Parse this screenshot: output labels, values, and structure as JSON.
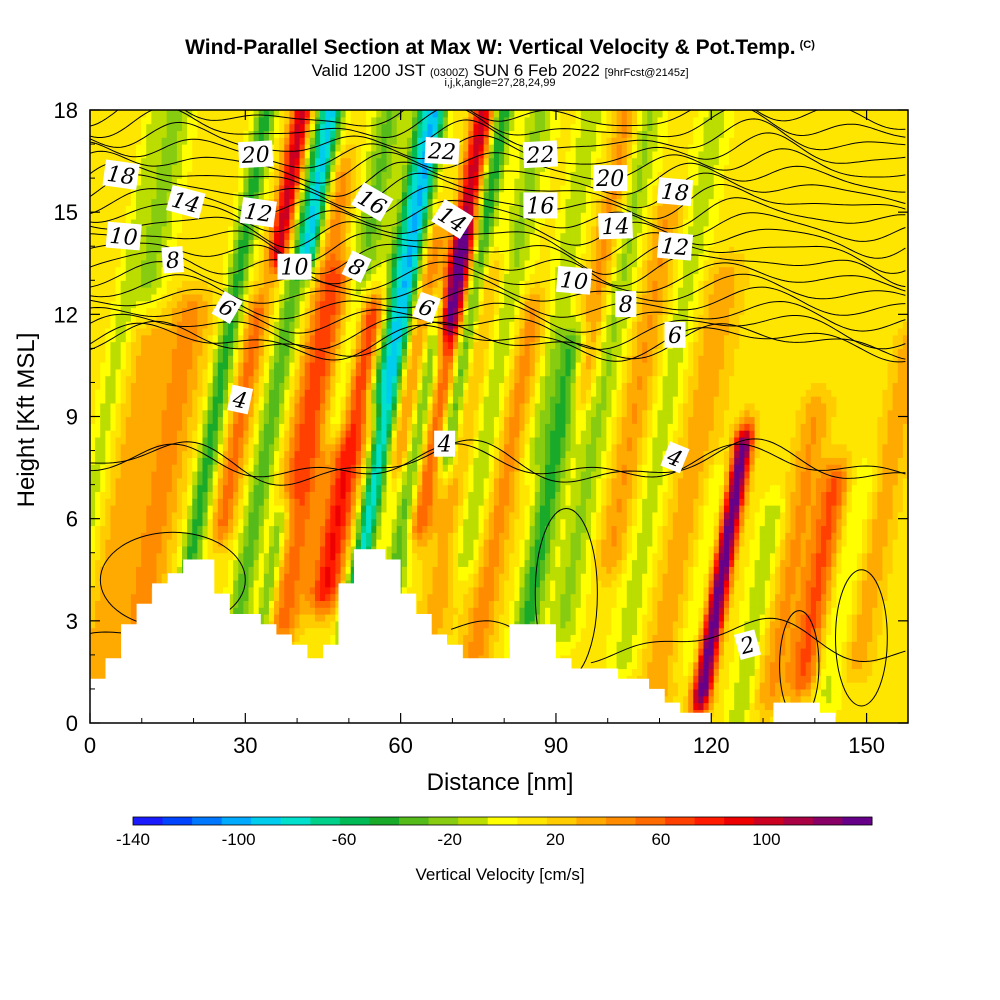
{
  "header": {
    "title": "Wind-Parallel Section at Max W: Vertical Velocity & Pot.Temp.",
    "title_tag": "(C)",
    "subtitle_a": "Valid 1200 JST",
    "subtitle_b": "(0300Z)",
    "subtitle_c": "SUN 6 Feb 2022",
    "subtitle_d": "[9hrFcst@2145z]",
    "info": "i,j,k,angle=27,28,24,99"
  },
  "chart_data": {
    "type": "heatmap",
    "xlabel": "Distance [nm]",
    "ylabel": "Height [Kft MSL]",
    "xlim": [
      0,
      158
    ],
    "ylim": [
      0,
      18
    ],
    "x_ticks": [
      0,
      30,
      60,
      90,
      120,
      150
    ],
    "y_ticks": [
      0,
      3,
      6,
      9,
      12,
      15,
      18
    ],
    "colorbar": {
      "title": "Vertical Velocity [cm/s]",
      "tick_labels": [
        "-140",
        "-100",
        "-60",
        "-20",
        "20",
        "60",
        "100"
      ],
      "tick_values": [
        -140,
        -100,
        -60,
        -20,
        20,
        60,
        100
      ],
      "range": [
        -140,
        140
      ],
      "colors": [
        "#1a1aff",
        "#0044ff",
        "#0077ff",
        "#00aaff",
        "#00ccee",
        "#00e0cc",
        "#00d08a",
        "#00bb55",
        "#1aaa2a",
        "#55bb1a",
        "#88cc11",
        "#bbdd00",
        "#ffff00",
        "#ffe600",
        "#ffcc00",
        "#ffaa00",
        "#ff8c00",
        "#ff6a00",
        "#ff4000",
        "#ff1a00",
        "#ee0000",
        "#cc0020",
        "#aa0044",
        "#880066",
        "#660088"
      ]
    },
    "contour_labels": [
      {
        "text": "18",
        "x": 6,
        "y": 16.1,
        "rot": 8
      },
      {
        "text": "14",
        "x": 18.5,
        "y": 15.3,
        "rot": 15
      },
      {
        "text": "10",
        "x": 6.5,
        "y": 14.3,
        "rot": 5
      },
      {
        "text": "8",
        "x": 16,
        "y": 13.6,
        "rot": -4
      },
      {
        "text": "6",
        "x": 26.5,
        "y": 12.2,
        "rot": 30
      },
      {
        "text": "20",
        "x": 32,
        "y": 16.7,
        "rot": -3
      },
      {
        "text": "12",
        "x": 32.5,
        "y": 15.0,
        "rot": 8
      },
      {
        "text": "10",
        "x": 39.5,
        "y": 13.4,
        "rot": 0
      },
      {
        "text": "4",
        "x": 29,
        "y": 9.5,
        "rot": 12
      },
      {
        "text": "16",
        "x": 54.5,
        "y": 15.3,
        "rot": 30
      },
      {
        "text": "8",
        "x": 51.5,
        "y": 13.4,
        "rot": 25
      },
      {
        "text": "22",
        "x": 68,
        "y": 16.8,
        "rot": 3
      },
      {
        "text": "14",
        "x": 70,
        "y": 14.8,
        "rot": 32
      },
      {
        "text": "6",
        "x": 65,
        "y": 12.2,
        "rot": 20
      },
      {
        "text": "4",
        "x": 68.5,
        "y": 8.2,
        "rot": 0
      },
      {
        "text": "22",
        "x": 87,
        "y": 16.7,
        "rot": -3
      },
      {
        "text": "16",
        "x": 87,
        "y": 15.2,
        "rot": 0
      },
      {
        "text": "20",
        "x": 100.5,
        "y": 16.0,
        "rot": 0
      },
      {
        "text": "14",
        "x": 101.5,
        "y": 14.6,
        "rot": -2
      },
      {
        "text": "10",
        "x": 93.5,
        "y": 13.0,
        "rot": 5
      },
      {
        "text": "8",
        "x": 103.5,
        "y": 12.3,
        "rot": 0
      },
      {
        "text": "18",
        "x": 113,
        "y": 15.6,
        "rot": 5
      },
      {
        "text": "12",
        "x": 113,
        "y": 14.0,
        "rot": 5
      },
      {
        "text": "6",
        "x": 113,
        "y": 11.4,
        "rot": 0
      },
      {
        "text": "4",
        "x": 113,
        "y": 7.8,
        "rot": 22
      },
      {
        "text": "2",
        "x": 127,
        "y": 2.3,
        "rot": -15
      }
    ]
  }
}
